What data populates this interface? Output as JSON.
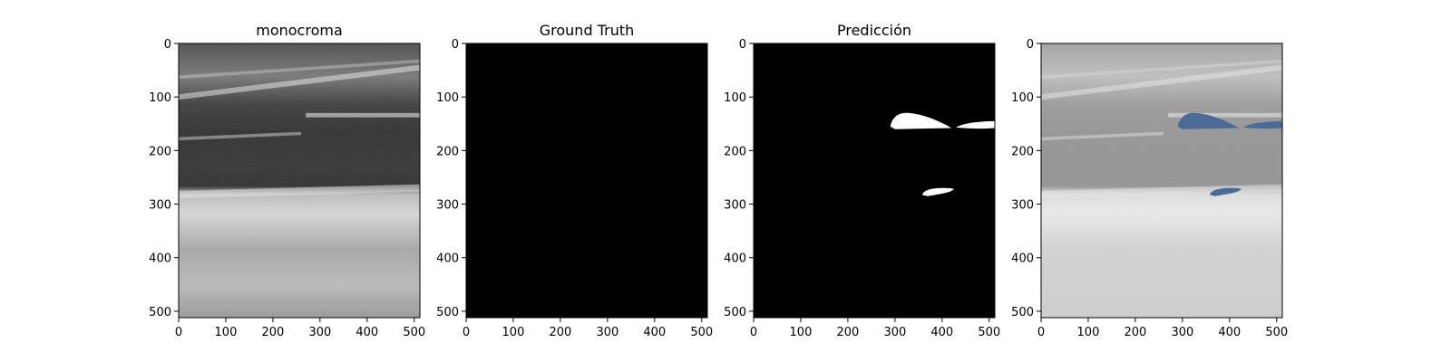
{
  "panels": [
    {
      "title": "monocroma",
      "kind": "ultrasound"
    },
    {
      "title": "Ground Truth",
      "kind": "empty_mask"
    },
    {
      "title": "Predicción",
      "kind": "prediction_mask"
    },
    {
      "title": "",
      "kind": "overlay"
    }
  ],
  "axes": {
    "x_ticks": [
      "0",
      "100",
      "200",
      "300",
      "400",
      "500"
    ],
    "y_ticks": [
      "0",
      "100",
      "200",
      "300",
      "400",
      "500"
    ]
  },
  "colors": {
    "mask_fill": "#ffffff",
    "mask_background": "#000000",
    "overlay_blob": "#4c6a96"
  }
}
